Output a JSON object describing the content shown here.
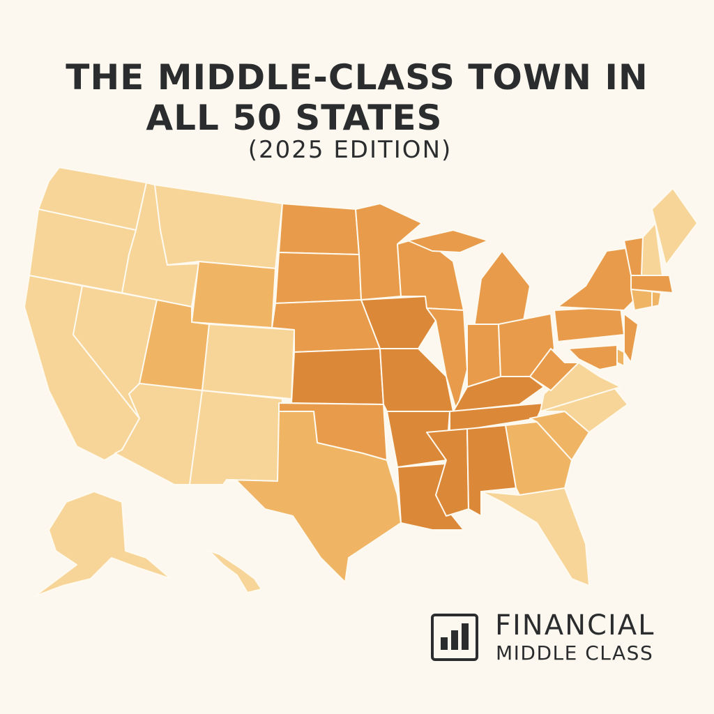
{
  "header": {
    "title_line1": "THE MIDDLE-CLASS TOWN IN",
    "title_line2": "ALL 50 STATES",
    "subtitle": "(2025 EDITION)"
  },
  "logo": {
    "line1": "FINANCIAL",
    "line2": "MIDDLE CLASS",
    "icon": "bar-chart-icon"
  },
  "colors": {
    "background": "#fcf8ef",
    "text": "#2a2c2e",
    "border": "#fffaf0",
    "shades": [
      "#f7d598",
      "#f0b465",
      "#e89c4b",
      "#dc8839"
    ]
  },
  "state_shade_level": {
    "WA": 0,
    "OR": 0,
    "CA": 0,
    "ID": 0,
    "MT": 0,
    "NV": 0,
    "AZ": 0,
    "NM": 0,
    "CO": 0,
    "VA": 0,
    "NC": 0,
    "FL": 0,
    "ME": 0,
    "NH": 0,
    "AK": 0,
    "HI": 0,
    "WY": 1,
    "UT": 1,
    "TX": 1,
    "GA": 1,
    "SC": 1,
    "CT": 1,
    "RI": 1,
    "DE": 1,
    "ND": 2,
    "SD": 2,
    "NE": 2,
    "MN": 2,
    "WI": 2,
    "MI": 2,
    "IL": 2,
    "OH": 2,
    "PA": 2,
    "NY": 2,
    "NJ": 2,
    "MD": 2,
    "WV": 2,
    "OK": 2,
    "IN": 2,
    "VT": 2,
    "MA": 2,
    "KS": 3,
    "MO": 3,
    "AR": 3,
    "IA": 3,
    "LA": 3,
    "MS": 3,
    "AL": 3,
    "TN": 3,
    "KY": 3
  }
}
